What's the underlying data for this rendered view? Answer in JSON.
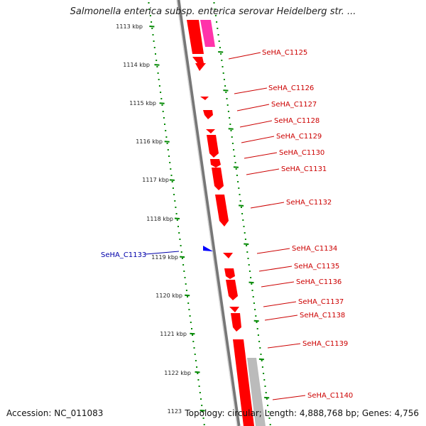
{
  "title": "Salmonella enterica subsp. enterica serovar Heidelberg str. ...",
  "footer": {
    "accession": "Accession: NC_011083",
    "stats": "Topology: circular; Length: 4,888,768 bp; Genes: 4,756"
  },
  "colors": {
    "forward_gene": "#ff0000",
    "reverse_gene": "#0000ff",
    "highlight_gene": "#ff33aa",
    "other_feature": "#bbbbbb",
    "backbone": "#808080",
    "ruler": "#008800",
    "forward_label": "#cc0000",
    "reverse_label": "#0000aa"
  },
  "ruler_labels": [
    "1113 kbp",
    "1114 kbp",
    "1115 kbp",
    "1116 kbp",
    "1117 kbp",
    "1118 kbp",
    "1119 kbp",
    "1120 kbp",
    "1121 kbp",
    "1122 kbp",
    "1123"
  ],
  "forward_labels": [
    "SeHA_C1125",
    "SeHA_C1126",
    "SeHA_C1127",
    "SeHA_C1128",
    "SeHA_C1129",
    "SeHA_C1130",
    "SeHA_C1131",
    "SeHA_C1132",
    "SeHA_C1134",
    "SeHA_C1135",
    "SeHA_C1136",
    "SeHA_C1137",
    "SeHA_C1138",
    "SeHA_C1139",
    "SeHA_C1140"
  ],
  "reverse_labels": [
    "SeHA_C1133"
  ]
}
